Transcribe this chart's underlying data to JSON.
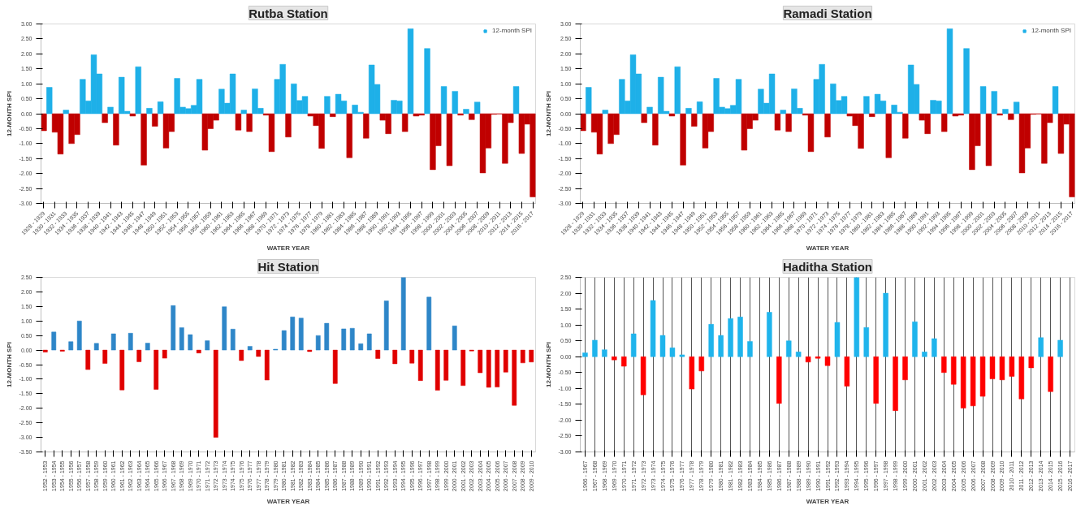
{
  "chart_data": [
    {
      "type": "bar",
      "title": "Rutba Station",
      "xlabel": "WATER YEAR",
      "ylabel": "12-MONTH SPI",
      "legend": "top right",
      "grid": false,
      "categories": [
        "1928 - 1929",
        null,
        "1930 - 1931",
        null,
        "1932 - 1933",
        null,
        "1934 - 1935",
        null,
        "1936 - 1937",
        null,
        "1938 - 1939",
        null,
        "1940 - 1941",
        null,
        "1942 - 1943",
        null,
        "1944 - 1945",
        null,
        "1946 - 1947",
        null,
        "1948 - 1949",
        null,
        "1950 - 1951",
        null,
        "1952 - 1953",
        null,
        "1954 - 1955",
        null,
        "1956 - 1957",
        null,
        "1958 - 1959",
        null,
        "1960 - 1961",
        null,
        "1962 - 1963",
        null,
        "1964 - 1965",
        null,
        "1966 - 1967",
        null,
        "1968 - 1969",
        null,
        "1970 - 1971",
        null,
        "1972 - 1973",
        null,
        "1974 - 1975",
        null,
        "1976 - 1977",
        null,
        "1978 - 1979",
        null,
        "1980 - 1981",
        null,
        "1982 - 1983",
        null,
        "1984 - 1985",
        null,
        "1986 - 1987",
        null,
        "1988 - 1989",
        null,
        "1990 - 1991",
        null,
        "1992 - 1993",
        null,
        "1994 - 1995",
        null,
        "1996 - 1997",
        null,
        "1998 - 1999",
        null,
        "2000 - 2001",
        null,
        "2002 - 2003",
        null,
        "2004 - 2005",
        null,
        "2006 - 2007",
        null,
        "2008 - 2009",
        null,
        "2010 - 2011",
        null,
        "2012 - 2013",
        null,
        "2014 - 2015",
        null,
        "2016 - 2017"
      ],
      "ylim": [
        -3,
        3
      ],
      "yticks": [
        {
          "value": -3,
          "label": "-3.00"
        },
        {
          "value": -2.5,
          "label": "-2.50"
        },
        {
          "value": -2,
          "label": "-2.00"
        },
        {
          "value": -1.5,
          "label": "-1.50"
        },
        {
          "value": -1,
          "label": "-1.00"
        },
        {
          "value": -0.5,
          "label": "-0.50"
        },
        {
          "value": 0,
          "label": "0.00"
        },
        {
          "value": 0.5,
          "label": "0.50"
        },
        {
          "value": 1,
          "label": "1.00"
        },
        {
          "value": 1.5,
          "label": "1.50"
        },
        {
          "value": 2,
          "label": "2.00"
        },
        {
          "value": 2.5,
          "label": "2.50"
        },
        {
          "value": 3,
          "label": "3.00"
        }
      ],
      "series": [
        {
          "name": "12-month SPI",
          "color": "#1eb0e8",
          "values": [
            -0.57,
            0.88,
            -0.62,
            -1.35,
            0.12,
            -1.0,
            -0.7,
            1.15,
            0.43,
            1.97,
            1.33,
            -0.3,
            0.22,
            -1.05,
            1.22,
            0.08,
            -0.08,
            1.57,
            -1.72,
            0.18,
            -0.42,
            0.4,
            -1.15,
            -0.6,
            1.18,
            0.22,
            0.17,
            0.28,
            1.15,
            -1.22,
            -0.5,
            -0.22,
            0.82,
            0.35,
            1.33,
            -0.55,
            0.12,
            -0.6,
            0.83,
            0.18,
            -0.05,
            -1.27,
            1.15,
            1.65,
            -0.78,
            1.0,
            0.44,
            0.58,
            -0.08,
            -0.4,
            -1.16,
            0.58,
            -0.1,
            0.65,
            0.43,
            -1.47,
            0.29,
            0.05,
            -0.82,
            1.63,
            0.98,
            -0.22,
            -0.67,
            0.45,
            0.43,
            -0.6,
            2.84,
            -0.08,
            -0.05,
            2.18,
            -1.87,
            -1.07,
            0.91,
            -1.74,
            0.75,
            -0.05,
            0.15,
            -0.2,
            0.39,
            -1.98,
            -1.15,
            -0.02,
            -0.01,
            -1.66,
            -0.3,
            0.91,
            -1.33,
            -0.35,
            -2.78
          ],
          "colors": [
            "#c00000",
            "#1eb0e8",
            "#c00000",
            "#c00000",
            "#1eb0e8",
            "#c00000",
            "#c00000",
            "#1eb0e8",
            "#1eb0e8",
            "#1eb0e8",
            "#1eb0e8",
            "#c00000",
            "#1eb0e8",
            "#c00000",
            "#1eb0e8",
            "#1eb0e8",
            "#c00000",
            "#1eb0e8",
            "#c00000",
            "#1eb0e8",
            "#c00000",
            "#1eb0e8",
            "#c00000",
            "#c00000",
            "#1eb0e8",
            "#1eb0e8",
            "#1eb0e8",
            "#1eb0e8",
            "#1eb0e8",
            "#c00000",
            "#c00000",
            "#c00000",
            "#1eb0e8",
            "#1eb0e8",
            "#1eb0e8",
            "#c00000",
            "#1eb0e8",
            "#c00000",
            "#1eb0e8",
            "#1eb0e8",
            "#c00000",
            "#c00000",
            "#1eb0e8",
            "#1eb0e8",
            "#c00000",
            "#1eb0e8",
            "#1eb0e8",
            "#1eb0e8",
            "#c00000",
            "#c00000",
            "#c00000",
            "#1eb0e8",
            "#c00000",
            "#1eb0e8",
            "#1eb0e8",
            "#c00000",
            "#1eb0e8",
            "#1eb0e8",
            "#c00000",
            "#1eb0e8",
            "#1eb0e8",
            "#c00000",
            "#c00000",
            "#1eb0e8",
            "#1eb0e8",
            "#c00000",
            "#1eb0e8",
            "#c00000",
            "#c00000",
            "#1eb0e8",
            "#c00000",
            "#c00000",
            "#1eb0e8",
            "#c00000",
            "#1eb0e8",
            "#c00000",
            "#1eb0e8",
            "#c00000",
            "#1eb0e8",
            "#c00000",
            "#c00000",
            "#c00000",
            "#c00000",
            "#c00000",
            "#c00000",
            "#1eb0e8",
            "#c00000",
            "#c00000",
            "#c00000"
          ]
        }
      ]
    },
    {
      "type": "bar",
      "title": "Ramadi Station",
      "xlabel": "WATER YEAR",
      "ylabel": "12-MONTH SPI",
      "legend": "top right",
      "grid": false,
      "categories": [
        "1928 - 1929",
        null,
        "1930 - 1931",
        null,
        "1932 - 1933",
        null,
        "1934 - 1935",
        null,
        "1936 - 1937",
        null,
        "1938 - 1939",
        null,
        "1940 - 1941",
        null,
        "1942 - 1943",
        null,
        "1944 - 1945",
        null,
        "1946 - 1947",
        null,
        "1948 - 1949",
        null,
        "1950 - 1951",
        null,
        "1952 - 1953",
        null,
        "1954 - 1955",
        null,
        "1956 - 1957",
        null,
        "1958 - 1959",
        null,
        "1960 - 1961",
        null,
        "1962 - 1963",
        null,
        "1964 - 1965",
        null,
        "1966 - 1967",
        null,
        "1968 - 1969",
        null,
        "1970 - 1971",
        null,
        "1972 - 1973",
        null,
        "1974 - 1975",
        null,
        "1976 - 1977",
        null,
        "1978 - 1979",
        null,
        "1980 - 1981",
        null,
        "1982 - 1983",
        null,
        "1984 - 1985",
        null,
        "1986 - 1987",
        null,
        "1988 - 1989",
        null,
        "1990 - 1991",
        null,
        "1992 - 1993",
        null,
        "1994 - 1995",
        null,
        "1996 - 1997",
        null,
        "1998 - 1999",
        null,
        "2000 - 2001",
        null,
        "2002 - 2003",
        null,
        "2004 - 2005",
        null,
        "2006 - 2007",
        null,
        "2008 - 2009",
        null,
        "2010 - 2011",
        null,
        "2012 - 2013",
        null,
        "2014 - 2015",
        null,
        "2016 - 2017"
      ],
      "ylim": [
        -3,
        3
      ],
      "yticks": [
        {
          "value": -3,
          "label": "-3.00"
        },
        {
          "value": -2.5,
          "label": "-2.50"
        },
        {
          "value": -2,
          "label": "-2.00"
        },
        {
          "value": -1.5,
          "label": "-1.50"
        },
        {
          "value": -1,
          "label": "-1.00"
        },
        {
          "value": -0.5,
          "label": "-0.50"
        },
        {
          "value": 0,
          "label": "0.00"
        },
        {
          "value": 0.5,
          "label": "0.50"
        },
        {
          "value": 1,
          "label": "1.00"
        },
        {
          "value": 1.5,
          "label": "1.50"
        },
        {
          "value": 2,
          "label": "2.00"
        },
        {
          "value": 2.5,
          "label": "2.50"
        },
        {
          "value": 3,
          "label": "3.00"
        }
      ],
      "series": [
        {
          "name": "12-month SPI",
          "color": "#1eb0e8",
          "values": [
            -0.57,
            0.88,
            -0.62,
            -1.35,
            0.12,
            -1.0,
            -0.7,
            1.15,
            0.43,
            1.97,
            1.33,
            -0.3,
            0.22,
            -1.05,
            1.22,
            0.08,
            -0.08,
            1.57,
            -1.72,
            0.18,
            -0.42,
            0.4,
            -1.15,
            -0.6,
            1.18,
            0.22,
            0.17,
            0.28,
            1.15,
            -1.22,
            -0.5,
            -0.22,
            0.82,
            0.35,
            1.33,
            -0.55,
            0.12,
            -0.6,
            0.83,
            0.18,
            -0.05,
            -1.27,
            1.15,
            1.65,
            -0.78,
            1.0,
            0.44,
            0.58,
            -0.08,
            -0.4,
            -1.16,
            0.58,
            -0.1,
            0.65,
            0.43,
            -1.47,
            0.29,
            0.05,
            -0.82,
            1.63,
            0.98,
            -0.22,
            -0.67,
            0.45,
            0.43,
            -0.6,
            2.84,
            -0.08,
            -0.05,
            2.18,
            -1.87,
            -1.07,
            0.91,
            -1.74,
            0.75,
            -0.05,
            0.15,
            -0.2,
            0.39,
            -1.98,
            -1.15,
            -0.02,
            -0.01,
            -1.66,
            -0.3,
            0.91,
            -1.33,
            -0.35,
            -2.78
          ],
          "colors": [
            "#c00000",
            "#1eb0e8",
            "#c00000",
            "#c00000",
            "#1eb0e8",
            "#c00000",
            "#c00000",
            "#1eb0e8",
            "#1eb0e8",
            "#1eb0e8",
            "#1eb0e8",
            "#c00000",
            "#1eb0e8",
            "#c00000",
            "#1eb0e8",
            "#1eb0e8",
            "#c00000",
            "#1eb0e8",
            "#c00000",
            "#1eb0e8",
            "#c00000",
            "#1eb0e8",
            "#c00000",
            "#c00000",
            "#1eb0e8",
            "#1eb0e8",
            "#1eb0e8",
            "#1eb0e8",
            "#1eb0e8",
            "#c00000",
            "#c00000",
            "#c00000",
            "#1eb0e8",
            "#1eb0e8",
            "#1eb0e8",
            "#c00000",
            "#1eb0e8",
            "#c00000",
            "#1eb0e8",
            "#1eb0e8",
            "#c00000",
            "#c00000",
            "#1eb0e8",
            "#1eb0e8",
            "#c00000",
            "#1eb0e8",
            "#1eb0e8",
            "#1eb0e8",
            "#c00000",
            "#c00000",
            "#c00000",
            "#1eb0e8",
            "#c00000",
            "#1eb0e8",
            "#1eb0e8",
            "#c00000",
            "#1eb0e8",
            "#1eb0e8",
            "#c00000",
            "#1eb0e8",
            "#1eb0e8",
            "#c00000",
            "#c00000",
            "#1eb0e8",
            "#1eb0e8",
            "#c00000",
            "#1eb0e8",
            "#c00000",
            "#c00000",
            "#1eb0e8",
            "#c00000",
            "#c00000",
            "#1eb0e8",
            "#c00000",
            "#1eb0e8",
            "#c00000",
            "#1eb0e8",
            "#c00000",
            "#1eb0e8",
            "#c00000",
            "#c00000",
            "#c00000",
            "#c00000",
            "#c00000",
            "#c00000",
            "#1eb0e8",
            "#c00000",
            "#c00000",
            "#c00000"
          ]
        }
      ]
    },
    {
      "type": "bar",
      "title": "Hit Station",
      "xlabel": "WATER YEAR",
      "ylabel": "12-MONTH SPI",
      "grid": false,
      "categories": [
        "1952 - 1953",
        "1953 - 1954",
        "1954 - 1955",
        "1955 - 1956",
        "1956 - 1957",
        "1957 - 1958",
        "1958 - 1959",
        "1959 - 1960",
        "1960 - 1961",
        "1961 - 1962",
        "1962 - 1963",
        "1963 - 1964",
        "1964 - 1965",
        "1965 - 1966",
        "1966 - 1967",
        "1967 - 1968",
        "1968 - 1969",
        "1969 - 1970",
        "1970 - 1971",
        "1971 - 1972",
        "1972 - 1973",
        "1973 - 1974",
        "1974 - 1975",
        "1975 - 1976",
        "1976 - 1977",
        "1977 - 1978",
        "1978 - 1979",
        "1979 - 1980",
        "1980 - 1981",
        "1981 - 1982",
        "1982 - 1983",
        "1983 - 1984",
        "1984 - 1985",
        "1985 - 1986",
        "1986 - 1987",
        "1987 - 1988",
        "1988 - 1989",
        "1989 - 1990",
        "1990 - 1991",
        "1991 - 1992",
        "1992 - 1993",
        "1993 - 1994",
        "1994 - 1995",
        "1995 - 1996",
        "1996 - 1997",
        "1997 - 1998",
        "1998 - 1999",
        "1999 - 2000",
        "2000 - 2001",
        "2001 - 2002",
        "2002 - 2003",
        "2003 - 2004",
        "2004 - 2005",
        "2005 - 2006",
        "2006 - 2007",
        "2007 - 2008",
        "2008 - 2009",
        "2009 - 2010"
      ],
      "ylim": [
        -3.5,
        2.5
      ],
      "yticks": [
        {
          "value": -3.5,
          "label": "-3.50"
        },
        {
          "value": -3,
          "label": "-3.00"
        },
        {
          "value": -2.5,
          "label": "-2.50"
        },
        {
          "value": -2,
          "label": "-2.00"
        },
        {
          "value": -1.5,
          "label": "-1.50"
        },
        {
          "value": -1,
          "label": "-1.00"
        },
        {
          "value": -0.5,
          "label": "-0.50"
        },
        {
          "value": 0,
          "label": "0.00"
        },
        {
          "value": 0.5,
          "label": "0.50"
        },
        {
          "value": 1,
          "label": "1.00"
        },
        {
          "value": 1.5,
          "label": "1.50"
        },
        {
          "value": 2,
          "label": "2.00"
        },
        {
          "value": 2.5,
          "label": "2.50"
        }
      ],
      "series": [
        {
          "values": [
            -0.07,
            0.62,
            -0.04,
            0.29,
            1.0,
            -0.67,
            0.23,
            -0.46,
            0.56,
            -1.37,
            0.58,
            -0.4,
            0.24,
            -1.35,
            -0.28,
            1.53,
            0.77,
            0.53,
            -0.1,
            0.32,
            -3.0,
            1.49,
            0.72,
            -0.36,
            0.13,
            -0.22,
            -1.03,
            0.03,
            0.67,
            1.14,
            1.1,
            -0.05,
            0.5,
            0.92,
            -1.15,
            0.73,
            0.75,
            0.22,
            0.56,
            -0.29,
            1.69,
            -0.47,
            2.5,
            -0.45,
            -1.05,
            1.82,
            -1.38,
            -1.04,
            0.83,
            -1.22,
            -0.03,
            -0.78,
            -1.28,
            -1.27,
            -0.76,
            -1.9,
            -0.44,
            -0.41
          ],
          "colors": [
            "#e00000",
            "#2e86c8",
            "#e00000",
            "#2e86c8",
            "#2e86c8",
            "#e00000",
            "#2e86c8",
            "#e00000",
            "#2e86c8",
            "#e00000",
            "#2e86c8",
            "#e00000",
            "#2e86c8",
            "#e00000",
            "#e00000",
            "#2e86c8",
            "#2e86c8",
            "#2e86c8",
            "#e00000",
            "#2e86c8",
            "#e00000",
            "#2e86c8",
            "#2e86c8",
            "#e00000",
            "#2e86c8",
            "#e00000",
            "#e00000",
            "#2e86c8",
            "#2e86c8",
            "#2e86c8",
            "#2e86c8",
            "#e00000",
            "#2e86c8",
            "#2e86c8",
            "#e00000",
            "#2e86c8",
            "#2e86c8",
            "#2e86c8",
            "#2e86c8",
            "#e00000",
            "#2e86c8",
            "#e00000",
            "#2e86c8",
            "#e00000",
            "#e00000",
            "#2e86c8",
            "#e00000",
            "#e00000",
            "#2e86c8",
            "#e00000",
            "#e00000",
            "#e00000",
            "#e00000",
            "#e00000",
            "#e00000",
            "#e00000",
            "#e00000",
            "#e00000"
          ]
        }
      ]
    },
    {
      "type": "bar",
      "title": "Haditha Station",
      "xlabel": "WATER YEAR",
      "ylabel": "12-MONTH SPI",
      "grid": "x",
      "categories": [
        "1966 - 1967",
        "1967 - 1968",
        "1968 - 1969",
        "1969 - 1970",
        "1970 - 1971",
        "1971 - 1972",
        "1972 - 1973",
        "1973 - 1974",
        "1974 - 1975",
        "1975 - 1976",
        "1976 - 1977",
        "1977 - 1978",
        "1978 - 1979",
        "1979 - 1980",
        "1980 - 1981",
        "1981 - 1982",
        "1982 - 1983",
        "1983 - 1984",
        "1984 - 1985",
        "1985 - 1986",
        "1986 - 1987",
        "1987 - 1988",
        "1988 - 1989",
        "1989 - 1990",
        "1990 - 1991",
        "1991 - 1992",
        "1992 - 1993",
        "1993 - 1994",
        "1994 - 1995",
        "1995 - 1996",
        "1996 - 1997",
        "1997 - 1998",
        "1998 - 1999",
        "1999 - 2000",
        "2000 - 2001",
        "2001 - 2002",
        "2002 - 2003",
        "2003 - 2004",
        "2004 - 2005",
        "2005 - 2006",
        "2006 - 2007",
        "2007 - 2008",
        "2008 - 2009",
        "2009 - 2010",
        "2010 - 2011",
        "2011 - 2012",
        "2012 - 2013",
        "2013 - 2014",
        "2014 - 2015",
        "2015 - 2016",
        "2016 - 2017"
      ],
      "ylim": [
        -3,
        2.5
      ],
      "yticks": [
        {
          "value": -3,
          "label": "-3.00"
        },
        {
          "value": -2.5,
          "label": "-2.50"
        },
        {
          "value": -2,
          "label": "-2.00"
        },
        {
          "value": -1.5,
          "label": "-1.50"
        },
        {
          "value": -1,
          "label": "-1.00"
        },
        {
          "value": -0.5,
          "label": "-0.50"
        },
        {
          "value": 0,
          "label": "0.00"
        },
        {
          "value": 0.5,
          "label": "0.50"
        },
        {
          "value": 1,
          "label": "1.00"
        },
        {
          "value": 1.5,
          "label": "1.50"
        },
        {
          "value": 2,
          "label": "2.00"
        },
        {
          "value": 2.5,
          "label": "2.50"
        }
      ],
      "series": [
        {
          "values": [
            0.12,
            0.52,
            0.22,
            -0.1,
            -0.3,
            0.72,
            -1.2,
            1.77,
            0.67,
            0.28,
            0.06,
            -1.02,
            -0.45,
            1.02,
            0.67,
            1.2,
            1.25,
            0.48,
            null,
            1.4,
            -1.47,
            0.5,
            0.15,
            -0.17,
            -0.05,
            -0.28,
            1.08,
            -0.93,
            2.5,
            0.92,
            -1.47,
            2.0,
            -1.7,
            -0.73,
            1.1,
            0.15,
            0.57,
            -0.5,
            -0.87,
            -1.62,
            -1.55,
            -1.25,
            -0.7,
            -0.73,
            -0.62,
            -1.33,
            -0.35,
            0.6,
            -1.1,
            0.52,
            null
          ],
          "colors": [
            "#1fb4ec",
            "#1fb4ec",
            "#1fb4ec",
            "#ff0000",
            "#ff0000",
            "#1fb4ec",
            "#ff0000",
            "#1fb4ec",
            "#1fb4ec",
            "#1fb4ec",
            "#1fb4ec",
            "#ff0000",
            "#ff0000",
            "#1fb4ec",
            "#1fb4ec",
            "#1fb4ec",
            "#1fb4ec",
            "#1fb4ec",
            "#1fb4ec",
            "#1fb4ec",
            "#ff0000",
            "#1fb4ec",
            "#1fb4ec",
            "#ff0000",
            "#ff0000",
            "#ff0000",
            "#1fb4ec",
            "#ff0000",
            "#1fb4ec",
            "#1fb4ec",
            "#ff0000",
            "#1fb4ec",
            "#ff0000",
            "#ff0000",
            "#1fb4ec",
            "#1fb4ec",
            "#1fb4ec",
            "#ff0000",
            "#ff0000",
            "#ff0000",
            "#ff0000",
            "#ff0000",
            "#ff0000",
            "#ff0000",
            "#ff0000",
            "#ff0000",
            "#ff0000",
            "#1fb4ec",
            "#ff0000",
            "#1fb4ec",
            "#1fb4ec"
          ]
        }
      ]
    }
  ]
}
